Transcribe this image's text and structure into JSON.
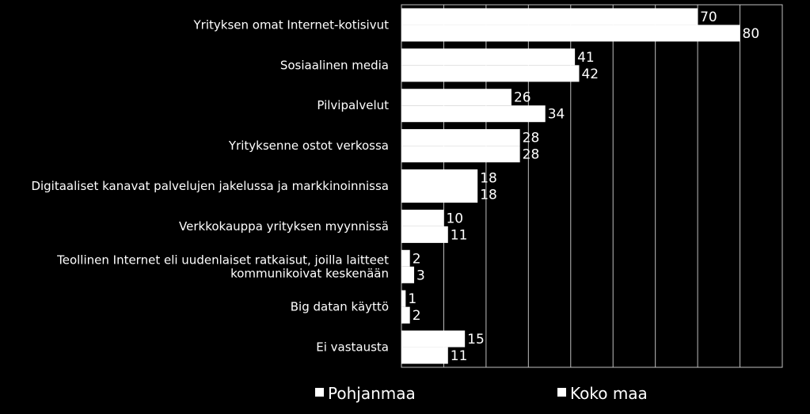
{
  "chart_data": {
    "type": "bar",
    "orientation": "horizontal",
    "categories": [
      "Yrityksen omat Internet-kotisivut",
      "Sosiaalinen media",
      "Pilvipalvelut",
      "Yrityksenne ostot verkossa",
      "Digitaaliset kanavat palvelujen jakelussa ja markkinoinnissa",
      "Verkkokauppa yrityksen myynnissä",
      "Teollinen Internet eli uudenlaiset ratkaisut, joilla laitteet kommunikoivat keskenään",
      "Big datan käyttö",
      "Ei vastausta"
    ],
    "series": [
      {
        "name": "Pohjanmaa",
        "values": [
          70,
          41,
          26,
          28,
          18,
          10,
          2,
          1,
          15
        ]
      },
      {
        "name": "Koko maa",
        "values": [
          80,
          42,
          34,
          28,
          18,
          11,
          3,
          2,
          11
        ]
      }
    ],
    "xlim": [
      0,
      90
    ],
    "grid": true,
    "bar_color": "#ffffff",
    "background_color": "#000000",
    "legend_position": "bottom"
  }
}
